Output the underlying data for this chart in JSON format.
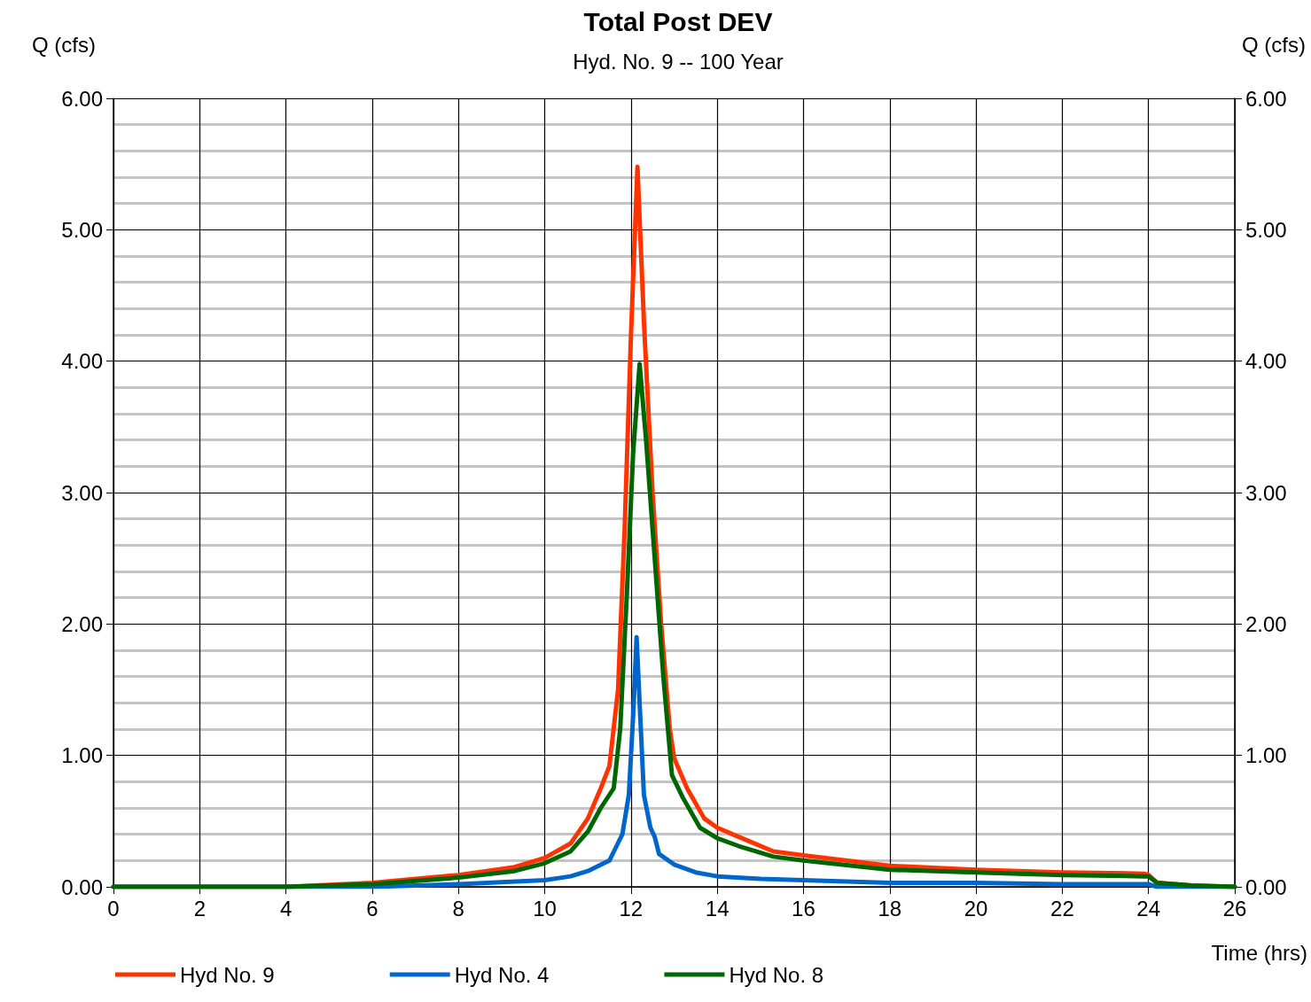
{
  "chart_data": {
    "type": "line",
    "title": "Total Post DEV",
    "subtitle": "Hyd. No. 9 -- 100 Year",
    "xlabel": "Time (hrs)",
    "ylabel": "Q (cfs)",
    "y2label": "Q (cfs)",
    "xlim": [
      0,
      26
    ],
    "xticks": [
      0,
      2,
      4,
      6,
      8,
      10,
      12,
      14,
      16,
      18,
      20,
      22,
      24,
      26
    ],
    "ylim": [
      0,
      6
    ],
    "yticks": [
      {
        "value": 0,
        "label": "0.00"
      },
      {
        "value": 1,
        "label": "1.00"
      },
      {
        "value": 2,
        "label": "2.00"
      },
      {
        "value": 3,
        "label": "3.00"
      },
      {
        "value": 4,
        "label": "4.00"
      },
      {
        "value": 5,
        "label": "5.00"
      },
      {
        "value": 6,
        "label": "6.00"
      }
    ],
    "y2lim": [
      0,
      6
    ],
    "y2ticks": [
      {
        "value": 0,
        "label": "0.00"
      },
      {
        "value": 1,
        "label": "1.00"
      },
      {
        "value": 2,
        "label": "2.00"
      },
      {
        "value": 3,
        "label": "3.00"
      },
      {
        "value": 4,
        "label": "4.00"
      },
      {
        "value": 5,
        "label": "5.00"
      },
      {
        "value": 6,
        "label": "6.00"
      }
    ],
    "grid": true,
    "legend": "bottom left",
    "marker": "none",
    "line_style": "solid",
    "series": [
      {
        "name": "Hyd No. 9",
        "color": "#ff3300",
        "x": [
          0,
          4,
          6,
          8,
          9.3,
          10,
          10.6,
          11,
          11.3,
          11.5,
          11.7,
          11.85,
          12,
          12.15,
          12.3,
          12.5,
          12.7,
          12.9,
          13,
          13.3,
          13.7,
          14,
          14.5,
          15.3,
          16,
          18,
          20,
          22,
          23.9,
          24,
          24.2,
          25,
          26
        ],
        "values": [
          0,
          0,
          0.03,
          0.09,
          0.15,
          0.22,
          0.33,
          0.52,
          0.75,
          0.92,
          1.5,
          2.7,
          4.2,
          5.48,
          4.3,
          3,
          2,
          1.2,
          0.98,
          0.75,
          0.52,
          0.45,
          0.38,
          0.27,
          0.24,
          0.16,
          0.13,
          0.11,
          0.1,
          0.09,
          0.03,
          0.01,
          0
        ]
      },
      {
        "name": "Hyd No. 4",
        "color": "#0066cc",
        "x": [
          0,
          6,
          8,
          10,
          10.6,
          11,
          11.5,
          11.65,
          11.8,
          11.95,
          12.05,
          12.13,
          12.2,
          12.3,
          12.45,
          12.55,
          12.65,
          13,
          13.5,
          14,
          15,
          16,
          18,
          20,
          22,
          24,
          24.2,
          26
        ],
        "values": [
          0,
          0,
          0.02,
          0.05,
          0.08,
          0.12,
          0.2,
          0.3,
          0.4,
          0.7,
          1.3,
          1.9,
          1.4,
          0.7,
          0.45,
          0.38,
          0.25,
          0.17,
          0.11,
          0.08,
          0.06,
          0.05,
          0.03,
          0.03,
          0.02,
          0.02,
          0,
          0
        ]
      },
      {
        "name": "Hyd No. 8",
        "color": "#006600",
        "x": [
          0,
          4,
          6,
          8,
          9.3,
          10,
          10.6,
          11,
          11.3,
          11.6,
          11.75,
          11.9,
          12.05,
          12.2,
          12.35,
          12.55,
          12.75,
          12.95,
          13.2,
          13.6,
          14,
          14.5,
          15.3,
          16,
          18,
          20,
          22,
          23.9,
          24,
          24.2,
          25,
          26
        ],
        "values": [
          0,
          0,
          0.02,
          0.07,
          0.12,
          0.18,
          0.27,
          0.42,
          0.6,
          0.75,
          1.2,
          2.2,
          3.3,
          3.98,
          3.4,
          2.5,
          1.6,
          0.85,
          0.68,
          0.45,
          0.37,
          0.31,
          0.23,
          0.2,
          0.13,
          0.11,
          0.09,
          0.08,
          0.08,
          0.03,
          0.01,
          0
        ]
      }
    ]
  }
}
